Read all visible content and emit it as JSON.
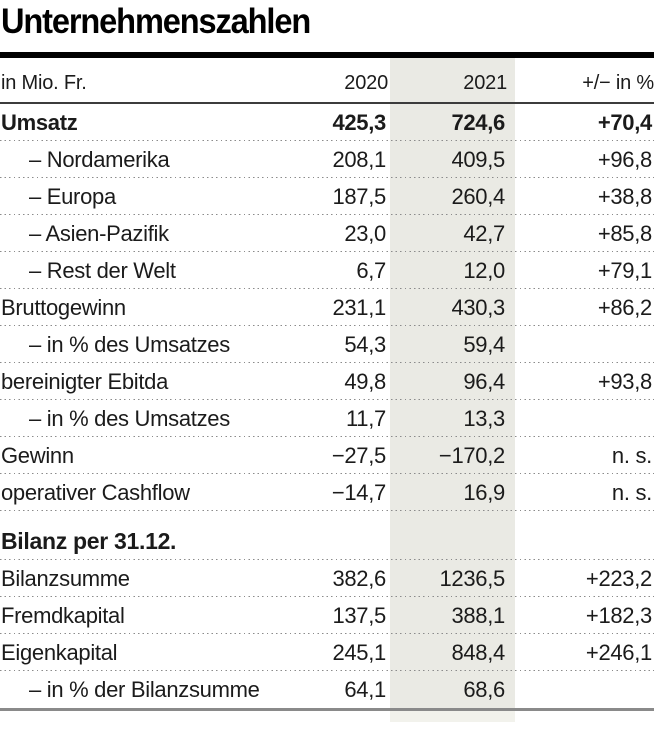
{
  "chart_data": {
    "type": "table",
    "title": "Unternehmenszahlen",
    "columns": [
      "in Mio. Fr.",
      "2020",
      "2021",
      "+/−  in %"
    ],
    "highlighted_column": "2021",
    "rows": [
      {
        "label": "Umsatz",
        "v2020": "425,3",
        "v2021": "724,6",
        "pct": "+70,4"
      },
      {
        "label": "– Nordamerika",
        "v2020": "208,1",
        "v2021": "409,5",
        "pct": "+96,8"
      },
      {
        "label": "– Europa",
        "v2020": "187,5",
        "v2021": "260,4",
        "pct": "+38,8"
      },
      {
        "label": "– Asien-Pazifik",
        "v2020": "23,0",
        "v2021": "42,7",
        "pct": "+85,8"
      },
      {
        "label": "– Rest der Welt",
        "v2020": "6,7",
        "v2021": "12,0",
        "pct": "+79,1"
      },
      {
        "label": "Bruttogewinn",
        "v2020": "231,1",
        "v2021": "430,3",
        "pct": "+86,2"
      },
      {
        "label": "– in % des Umsatzes",
        "v2020": "54,3",
        "v2021": "59,4",
        "pct": ""
      },
      {
        "label": "bereinigter Ebitda",
        "v2020": "49,8",
        "v2021": "96,4",
        "pct": "+93,8"
      },
      {
        "label": "– in % des Umsatzes",
        "v2020": "11,7",
        "v2021": "13,3",
        "pct": ""
      },
      {
        "label": "Gewinn",
        "v2020": "−27,5",
        "v2021": "−170,2",
        "pct": "n. s."
      },
      {
        "label": "operativer Cashflow",
        "v2020": "−14,7",
        "v2021": "16,9",
        "pct": "n. s."
      },
      {
        "label": "Bilanz per 31.12.",
        "v2020": "",
        "v2021": "",
        "pct": ""
      },
      {
        "label": "Bilanzsumme",
        "v2020": "382,6",
        "v2021": "1236,5",
        "pct": "+223,2"
      },
      {
        "label": "Fremdkapital",
        "v2020": "137,5",
        "v2021": "388,1",
        "pct": "+182,3"
      },
      {
        "label": "Eigenkapital",
        "v2020": "245,1",
        "v2021": "848,4",
        "pct": "+246,1"
      },
      {
        "label": "– in % der Bilanzsumme",
        "v2020": "64,1",
        "v2021": "68,6",
        "pct": ""
      }
    ]
  },
  "colors": {
    "band": "#eaeae4",
    "band_below": "#f2f2ec",
    "text": "#1b1b1b",
    "dotted": "#8b8b8b",
    "top_rule": "#000000",
    "header_rule": "#3c3c3c",
    "bottom_rule": "#8a8a8a"
  }
}
